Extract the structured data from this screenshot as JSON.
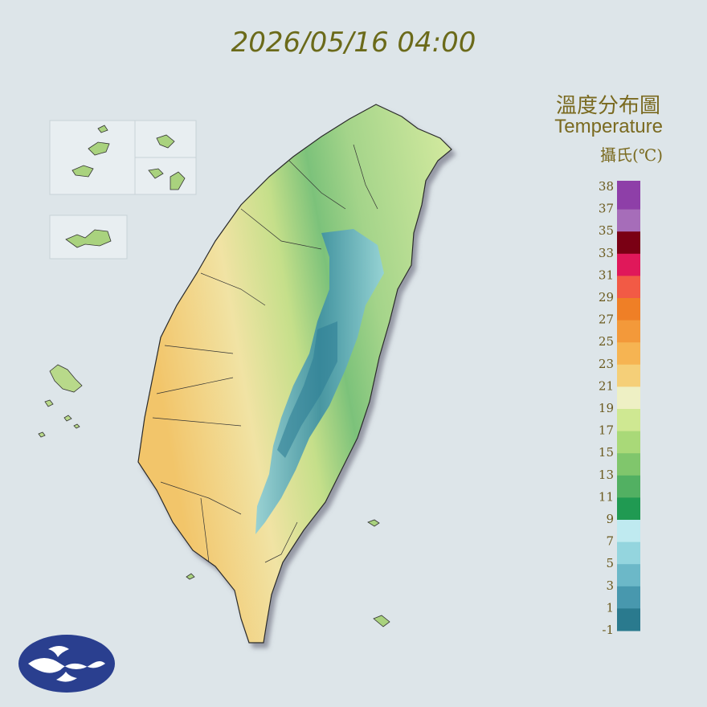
{
  "header": {
    "timestamp": "2026/05/16 04:00"
  },
  "legend": {
    "title": "溫度分布圖",
    "subtitle": "Temperature",
    "unit": "攝氏(℃)",
    "ticks": [
      38,
      37,
      35,
      33,
      31,
      29,
      27,
      25,
      23,
      21,
      19,
      17,
      15,
      13,
      11,
      9,
      7,
      5,
      3,
      1,
      -1
    ],
    "colors": [
      "#8e3fa8",
      "#a66db9",
      "#7a0014",
      "#e0185a",
      "#f25a45",
      "#ef7f26",
      "#f3993a",
      "#f6b452",
      "#f5cf78",
      "#eef0c4",
      "#cfe892",
      "#a9d978",
      "#80c66c",
      "#52b062",
      "#209a52",
      "#bfeaf0",
      "#94d5de",
      "#6cb8c8",
      "#4898ae",
      "#2a7a8e"
    ]
  }
}
